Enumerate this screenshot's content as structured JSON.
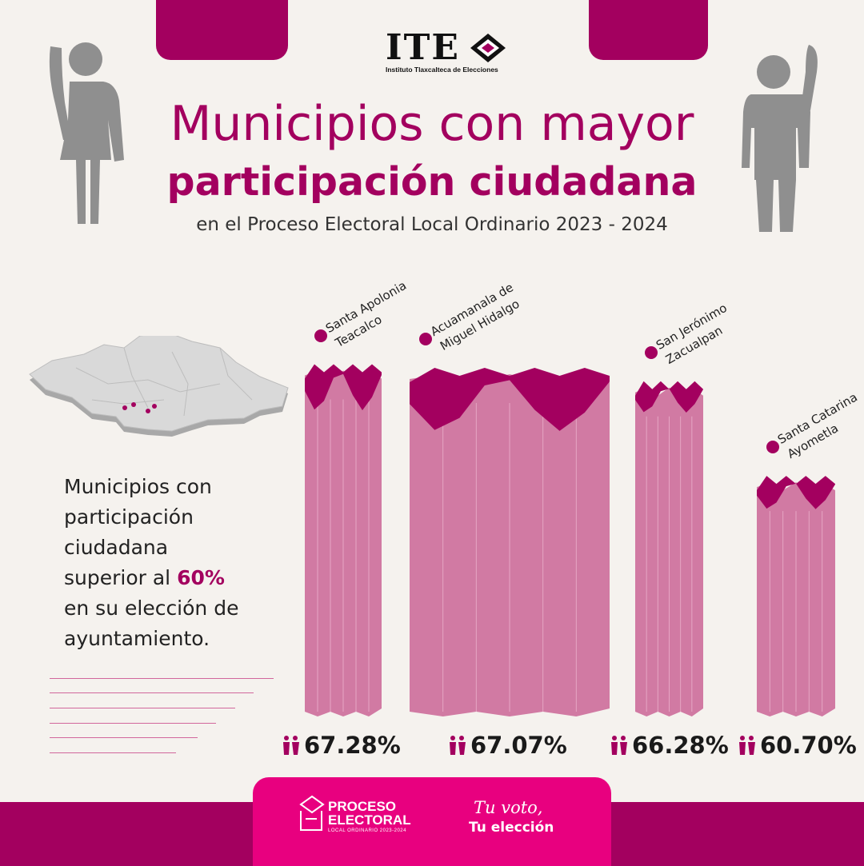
{
  "header": {
    "logo_text": "ITE",
    "logo_subtitle": "Instituto Tlaxcalteca de Elecciones",
    "title_line1": "Municipios con mayor",
    "title_line2": "participación ciudadana",
    "subtitle": "en el Proceso Electoral Local Ordinario 2023 - 2024"
  },
  "sidebar": {
    "line1": "Municipios con",
    "line2": "participación",
    "line3": "ciudadana",
    "line4_prefix": "superior al ",
    "line4_highlight": "60%",
    "line5": "en su elección de",
    "line6": "ayuntamiento."
  },
  "chart_data": {
    "type": "bar",
    "categories": [
      "Santa Apolonia Teacalco",
      "Acuamanala de Miguel Hidalgo",
      "San Jerónimo Zacualpan",
      "Santa Catarina Ayometla"
    ],
    "label_lines": [
      [
        "Santa Apolonia",
        "Teacalco"
      ],
      [
        "Acuamanala de",
        "Miguel Hidalgo"
      ],
      [
        "San Jerónimo",
        "Zacualpan"
      ],
      [
        "Santa Catarina",
        "Ayometla"
      ]
    ],
    "values": [
      67.28,
      67.07,
      66.28,
      60.7
    ],
    "value_labels": [
      "67.28%",
      "67.07%",
      "66.28%",
      "60.70%"
    ],
    "unit": "%"
  },
  "footer": {
    "proceso_line1": "PROCESO",
    "proceso_line2": "ELECTORAL",
    "proceso_small": "LOCAL ORDINARIO 2023-2024",
    "slogan_line1": "Tu voto,",
    "slogan_line2": "Tu elección"
  },
  "colors": {
    "accent": "#a3005f",
    "bar": "#d17aa3",
    "bar_top": "#a3005f",
    "footer_center": "#e8007f",
    "background": "#f5f2ee",
    "silhouette": "#8f8f8f"
  }
}
